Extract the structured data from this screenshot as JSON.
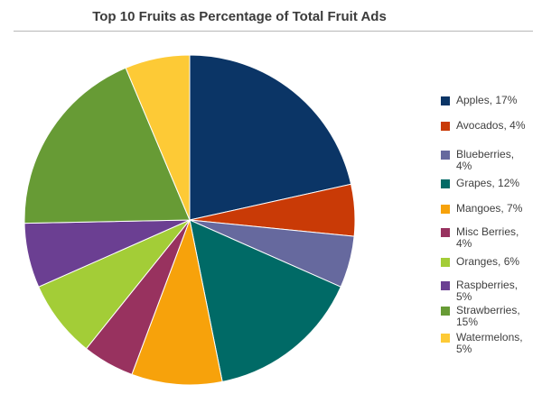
{
  "chart_data": {
    "type": "pie",
    "title": "Top 10 Fruits as Percentage of Total Fruit Ads",
    "slices": [
      {
        "label": "Apples, 17%",
        "name": "Apples",
        "value": 17,
        "color": "#0b3566"
      },
      {
        "label": "Avocados, 4%",
        "name": "Avocados",
        "value": 4,
        "color": "#c93a06"
      },
      {
        "label": "Blueberries, 4%",
        "name": "Blueberries",
        "value": 4,
        "color": "#66699e"
      },
      {
        "label": "Grapes, 12%",
        "name": "Grapes",
        "value": 12,
        "color": "#006a66"
      },
      {
        "label": "Mangoes, 7%",
        "name": "Mangoes",
        "value": 7,
        "color": "#f7a20b"
      },
      {
        "label": "Misc Berries, 4%",
        "name": "Misc Berries",
        "value": 4,
        "color": "#98325f"
      },
      {
        "label": "Oranges, 6%",
        "name": "Oranges",
        "value": 6,
        "color": "#a3cd37"
      },
      {
        "label": "Raspberries, 5%",
        "name": "Raspberries",
        "value": 5,
        "color": "#6b3f92"
      },
      {
        "label": "Strawberries, 15%",
        "name": "Strawberries",
        "value": 15,
        "color": "#679b35"
      },
      {
        "label": "Watermelons, 5%",
        "name": "Watermelons",
        "value": 5,
        "color": "#fdca36"
      }
    ],
    "legend_position": "right"
  }
}
